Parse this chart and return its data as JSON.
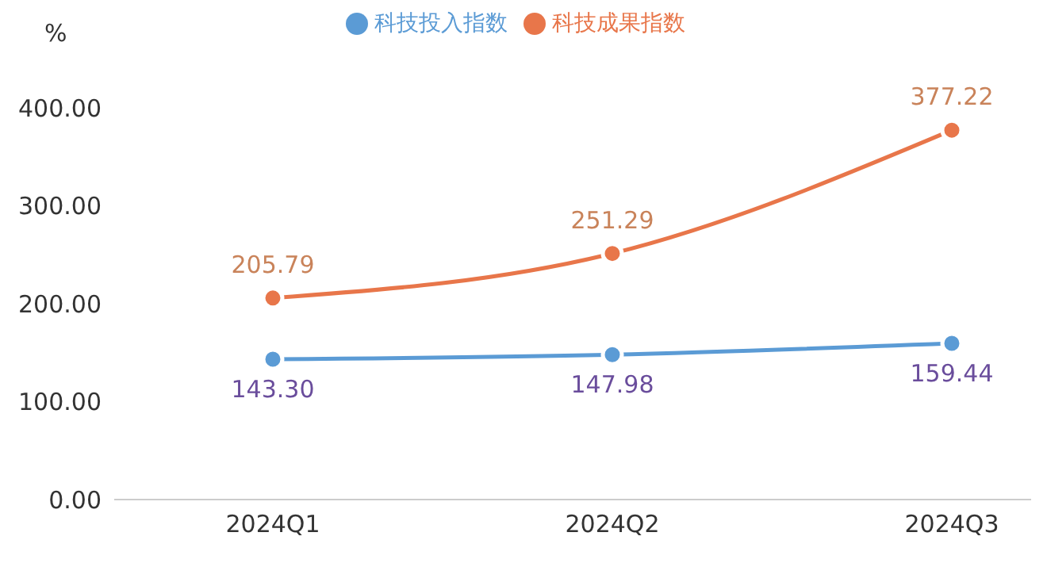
{
  "chart_data": {
    "type": "line",
    "ylabel": "%",
    "categories": [
      "2024Q1",
      "2024Q2",
      "2024Q3"
    ],
    "series": [
      {
        "name": "科技投入指数",
        "color": "#5b9bd5",
        "values": [
          143.3,
          147.98,
          159.44
        ],
        "value_labels": [
          "143.30",
          "147.98",
          "159.44"
        ]
      },
      {
        "name": "科技成果指数",
        "color": "#e8764a",
        "values": [
          205.79,
          251.29,
          377.22
        ],
        "value_labels": [
          "205.79",
          "251.29",
          "377.22"
        ]
      }
    ],
    "ylim": [
      0,
      400
    ],
    "yticks": [
      {
        "value": 0,
        "label": "0.00"
      },
      {
        "value": 100,
        "label": "100.00"
      },
      {
        "value": 200,
        "label": "200.00"
      },
      {
        "value": 300,
        "label": "300.00"
      },
      {
        "value": 400,
        "label": "400.00"
      }
    ],
    "grid": false,
    "legend": "top",
    "marker": "circle",
    "line_style": "solid"
  }
}
